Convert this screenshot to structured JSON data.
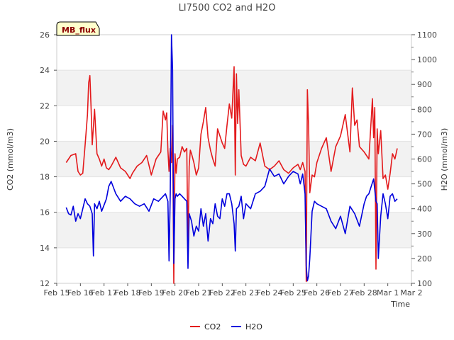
{
  "chart_data": {
    "type": "line",
    "title": "LI7500 CO2 and H2O",
    "badge": "MB_flux",
    "xlabel": "Time",
    "ylabel_left": "CO2 (mmol/m3)",
    "ylabel_right": "H2O (mmol/m3)",
    "xlim": [
      15,
      30
    ],
    "ylim_left": [
      12,
      26
    ],
    "ylim_right": [
      100,
      1100
    ],
    "x_ticks": [
      {
        "v": 15,
        "label": "Feb 15"
      },
      {
        "v": 16,
        "label": "Feb 16"
      },
      {
        "v": 17,
        "label": "Feb 17"
      },
      {
        "v": 18,
        "label": "Feb 18"
      },
      {
        "v": 19,
        "label": "Feb 19"
      },
      {
        "v": 20,
        "label": "Feb 20"
      },
      {
        "v": 21,
        "label": "Feb 21"
      },
      {
        "v": 22,
        "label": "Feb 22"
      },
      {
        "v": 23,
        "label": "Feb 23"
      },
      {
        "v": 24,
        "label": "Feb 24"
      },
      {
        "v": 25,
        "label": "Feb 25"
      },
      {
        "v": 26,
        "label": "Feb 26"
      },
      {
        "v": 27,
        "label": "Feb 27"
      },
      {
        "v": 28,
        "label": "Feb 28"
      },
      {
        "v": 29,
        "label": "Mar 1"
      },
      {
        "v": 30,
        "label": "Mar 2"
      }
    ],
    "y_ticks_left": [
      12,
      14,
      16,
      18,
      20,
      22,
      24,
      26
    ],
    "y_ticks_right": [
      100,
      200,
      300,
      400,
      500,
      600,
      700,
      800,
      900,
      1000,
      1100
    ],
    "legend_position": "bottom-center",
    "grid": true,
    "series": [
      {
        "name": "CO2",
        "axis": "left",
        "color": "#e31a1c",
        "x": [
          15.4,
          15.6,
          15.8,
          15.9,
          16.0,
          16.1,
          16.2,
          16.3,
          16.35,
          16.4,
          16.45,
          16.5,
          16.6,
          16.7,
          16.8,
          16.9,
          17.0,
          17.1,
          17.2,
          17.3,
          17.5,
          17.7,
          17.9,
          18.1,
          18.2,
          18.4,
          18.6,
          18.8,
          19.0,
          19.2,
          19.4,
          19.5,
          19.6,
          19.65,
          19.7,
          19.75,
          19.8,
          19.85,
          19.9,
          19.95,
          20.0,
          20.05,
          20.1,
          20.2,
          20.3,
          20.4,
          20.5,
          20.55,
          20.6,
          20.65,
          20.7,
          20.8,
          20.9,
          21.0,
          21.1,
          21.2,
          21.3,
          21.4,
          21.5,
          21.6,
          21.7,
          21.8,
          21.9,
          22.0,
          22.1,
          22.2,
          22.3,
          22.4,
          22.5,
          22.55,
          22.6,
          22.65,
          22.7,
          22.8,
          22.9,
          23.0,
          23.2,
          23.4,
          23.6,
          23.8,
          24.0,
          24.2,
          24.4,
          24.6,
          24.8,
          25.0,
          25.2,
          25.3,
          25.4,
          25.5,
          25.55,
          25.6,
          25.65,
          25.7,
          25.8,
          25.9,
          26.0,
          26.2,
          26.4,
          26.6,
          26.8,
          27.0,
          27.2,
          27.4,
          27.5,
          27.6,
          27.7,
          27.8,
          28.0,
          28.2,
          28.35,
          28.4,
          28.45,
          28.5,
          28.55,
          28.6,
          28.7,
          28.8,
          28.9,
          29.0,
          29.1,
          29.2,
          29.3,
          29.4
        ],
        "y": [
          18.8,
          19.2,
          19.3,
          18.3,
          18.1,
          18.2,
          19.8,
          21.5,
          23.3,
          23.7,
          22.0,
          19.8,
          21.8,
          19.3,
          19.0,
          18.6,
          19.0,
          18.5,
          18.4,
          18.6,
          19.1,
          18.5,
          18.3,
          17.9,
          18.2,
          18.6,
          18.8,
          19.2,
          18.1,
          19.0,
          19.4,
          21.7,
          21.2,
          21.6,
          19.5,
          18.3,
          19.6,
          18.8,
          20.9,
          12.0,
          19.3,
          18.2,
          19.0,
          19.1,
          19.7,
          19.4,
          19.6,
          13.9,
          18.6,
          19.5,
          19.3,
          18.8,
          18.1,
          18.5,
          20.4,
          21.1,
          21.9,
          20.2,
          19.5,
          19.0,
          18.6,
          20.7,
          20.3,
          19.9,
          19.6,
          20.9,
          22.1,
          21.3,
          24.2,
          18.1,
          23.8,
          21.0,
          22.9,
          19.2,
          18.7,
          18.6,
          19.1,
          18.9,
          19.9,
          18.6,
          18.4,
          18.6,
          18.9,
          18.4,
          18.2,
          18.5,
          18.7,
          18.4,
          18.8,
          18.3,
          12.1,
          22.9,
          20.9,
          17.1,
          18.1,
          18.0,
          18.8,
          19.6,
          20.2,
          18.3,
          19.7,
          20.3,
          21.5,
          19.4,
          23.0,
          20.9,
          21.2,
          19.7,
          19.4,
          19.0,
          22.4,
          20.2,
          21.9,
          12.8,
          20.7,
          19.3,
          20.6,
          17.9,
          18.1,
          17.3,
          18.2,
          19.3,
          19.0,
          19.6
        ]
      },
      {
        "name": "H2O",
        "axis": "right",
        "color": "#0000dd",
        "x": [
          15.4,
          15.5,
          15.6,
          15.7,
          15.8,
          15.9,
          16.0,
          16.1,
          16.2,
          16.3,
          16.4,
          16.5,
          16.55,
          16.6,
          16.7,
          16.8,
          16.9,
          17.0,
          17.1,
          17.2,
          17.3,
          17.5,
          17.7,
          17.9,
          18.1,
          18.3,
          18.5,
          18.7,
          18.9,
          19.1,
          19.3,
          19.5,
          19.6,
          19.7,
          19.75,
          19.8,
          19.85,
          19.9,
          19.95,
          20.0,
          20.05,
          20.1,
          20.2,
          20.3,
          20.4,
          20.5,
          20.55,
          20.6,
          20.7,
          20.8,
          20.9,
          21.0,
          21.1,
          21.2,
          21.3,
          21.4,
          21.5,
          21.6,
          21.7,
          21.8,
          21.9,
          22.0,
          22.1,
          22.2,
          22.3,
          22.4,
          22.5,
          22.55,
          22.6,
          22.7,
          22.8,
          22.9,
          23.0,
          23.2,
          23.4,
          23.6,
          23.8,
          24.0,
          24.2,
          24.4,
          24.6,
          24.8,
          25.0,
          25.2,
          25.3,
          25.4,
          25.5,
          25.55,
          25.6,
          25.65,
          25.7,
          25.8,
          25.9,
          26.0,
          26.2,
          26.4,
          26.6,
          26.8,
          27.0,
          27.2,
          27.4,
          27.6,
          27.8,
          28.0,
          28.1,
          28.2,
          28.3,
          28.4,
          28.5,
          28.55,
          28.6,
          28.7,
          28.8,
          28.9,
          29.0,
          29.1,
          29.2,
          29.3,
          29.4
        ],
        "y": [
          405,
          380,
          375,
          410,
          350,
          380,
          360,
          400,
          440,
          420,
          410,
          380,
          210,
          420,
          400,
          430,
          390,
          415,
          440,
          490,
          510,
          460,
          430,
          450,
          440,
          420,
          410,
          420,
          390,
          440,
          430,
          450,
          460,
          430,
          190,
          460,
          1100,
          960,
          180,
          440,
          460,
          450,
          460,
          450,
          440,
          430,
          160,
          380,
          350,
          290,
          330,
          310,
          400,
          330,
          380,
          270,
          360,
          340,
          420,
          370,
          360,
          440,
          410,
          460,
          460,
          420,
          340,
          230,
          400,
          410,
          450,
          360,
          420,
          400,
          460,
          470,
          490,
          560,
          530,
          540,
          500,
          530,
          550,
          540,
          500,
          540,
          460,
          170,
          110,
          130,
          200,
          390,
          430,
          420,
          410,
          400,
          350,
          320,
          370,
          300,
          410,
          380,
          330,
          420,
          450,
          460,
          490,
          520,
          430,
          420,
          200,
          370,
          460,
          420,
          360,
          450,
          460,
          430,
          440
        ]
      }
    ]
  }
}
